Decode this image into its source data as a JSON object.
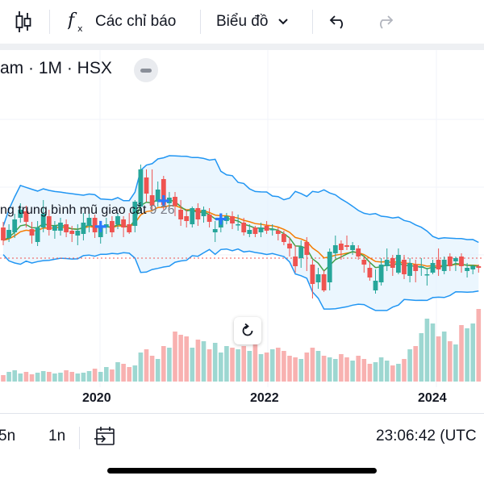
{
  "toolbar": {
    "indicators_label": "Các chỉ báo",
    "chart_type_label": "Biểu đồ"
  },
  "legend": {
    "symbol_text": "am · 1M · HSX"
  },
  "indicator": {
    "name": "ng trung bình mũ giao cắt",
    "values": "9 26"
  },
  "bottom_bar": {
    "range_5y": "5n",
    "range_1y": "1n",
    "clock": "23:06:42 (UTC"
  },
  "colors": {
    "up": "#26a69a",
    "down": "#ef5350",
    "bb_line": "#2196f3",
    "bb_fill": "#e3f2fd",
    "ema_fast": "#43a047",
    "ema_slow": "#f57c00",
    "cross": "#2979ff",
    "price_line": "#ef5350"
  },
  "chart_data": {
    "type": "candlestick",
    "interval": "1M",
    "x_ticks": [
      "2020",
      "2022",
      "2024"
    ],
    "ohlc": [
      [
        218,
        202,
        196,
        225
      ],
      [
        205,
        215,
        200,
        222
      ],
      [
        212,
        228,
        205,
        235
      ],
      [
        230,
        240,
        224,
        248
      ],
      [
        238,
        225,
        218,
        245
      ],
      [
        216,
        208,
        198,
        225
      ],
      [
        200,
        218,
        195,
        226
      ],
      [
        218,
        235,
        212,
        252
      ],
      [
        232,
        215,
        208,
        240
      ],
      [
        214,
        220,
        204,
        226
      ],
      [
        214,
        224,
        208,
        230
      ],
      [
        222,
        212,
        206,
        228
      ],
      [
        214,
        210,
        200,
        220
      ],
      [
        208,
        214,
        196,
        222
      ],
      [
        210,
        224,
        202,
        236
      ],
      [
        220,
        230,
        212,
        236
      ],
      [
        230,
        212,
        205,
        234
      ],
      [
        206,
        220,
        198,
        224
      ],
      [
        218,
        222,
        210,
        230
      ],
      [
        226,
        212,
        206,
        232
      ],
      [
        222,
        232,
        216,
        235
      ],
      [
        228,
        218,
        206,
        232
      ],
      [
        222,
        212,
        210,
        236
      ],
      [
        220,
        250,
        212,
        252
      ],
      [
        244,
        290,
        236,
        296
      ],
      [
        280,
        260,
        250,
        290
      ],
      [
        258,
        245,
        240,
        290
      ],
      [
        250,
        265,
        244,
        275
      ],
      [
        278,
        246,
        240,
        282
      ],
      [
        248,
        255,
        242,
        262
      ],
      [
        256,
        245,
        232,
        262
      ],
      [
        240,
        228,
        220,
        252
      ],
      [
        232,
        226,
        218,
        240
      ],
      [
        222,
        242,
        218,
        244
      ],
      [
        242,
        228,
        220,
        248
      ],
      [
        232,
        240,
        224,
        244
      ],
      [
        234,
        225,
        218,
        242
      ],
      [
        212,
        216,
        200,
        226
      ],
      [
        218,
        228,
        212,
        232
      ],
      [
        226,
        232,
        222,
        236
      ],
      [
        232,
        223,
        216,
        238
      ],
      [
        222,
        222,
        214,
        234
      ],
      [
        224,
        212,
        208,
        230
      ],
      [
        210,
        215,
        206,
        222
      ],
      [
        218,
        210,
        206,
        220
      ],
      [
        212,
        218,
        206,
        224
      ],
      [
        220,
        214,
        210,
        226
      ],
      [
        216,
        216,
        208,
        222
      ],
      [
        214,
        210,
        202,
        218
      ],
      [
        210,
        200,
        196,
        214
      ],
      [
        198,
        192,
        182,
        206
      ],
      [
        182,
        170,
        162,
        196
      ],
      [
        180,
        194,
        168,
        202
      ],
      [
        200,
        184,
        164,
        206
      ],
      [
        172,
        148,
        130,
        178
      ],
      [
        150,
        160,
        142,
        168
      ],
      [
        160,
        140,
        138,
        165
      ],
      [
        150,
        188,
        140,
        192
      ],
      [
        186,
        196,
        180,
        208
      ],
      [
        198,
        190,
        178,
        202
      ],
      [
        196,
        194,
        190,
        208
      ],
      [
        190,
        196,
        184,
        200
      ],
      [
        192,
        182,
        178,
        196
      ],
      [
        178,
        172,
        162,
        182
      ],
      [
        168,
        156,
        152,
        176
      ],
      [
        140,
        152,
        136,
        166
      ],
      [
        150,
        172,
        146,
        180
      ],
      [
        170,
        178,
        164,
        192
      ],
      [
        180,
        168,
        158,
        184
      ],
      [
        162,
        184,
        160,
        192
      ],
      [
        178,
        160,
        154,
        184
      ],
      [
        158,
        174,
        150,
        180
      ],
      [
        172,
        164,
        150,
        178
      ],
      [
        168,
        170,
        158,
        180
      ],
      [
        160,
        160,
        146,
        168
      ],
      [
        162,
        174,
        160,
        178
      ],
      [
        178,
        166,
        158,
        192
      ],
      [
        164,
        178,
        160,
        182
      ],
      [
        182,
        170,
        164,
        186
      ],
      [
        176,
        180,
        164,
        182
      ],
      [
        182,
        170,
        162,
        186
      ],
      [
        164,
        168,
        156,
        174
      ],
      [
        166,
        170,
        160,
        172
      ],
      [
        170,
        168,
        162,
        172
      ]
    ],
    "volume": [
      8,
      12,
      14,
      10,
      12,
      9,
      11,
      13,
      12,
      10,
      11,
      14,
      12,
      10,
      11,
      13,
      16,
      12,
      18,
      15,
      24,
      22,
      18,
      20,
      36,
      40,
      32,
      28,
      44,
      42,
      62,
      58,
      56,
      42,
      52,
      50,
      40,
      48,
      36,
      44,
      42,
      40,
      44,
      38,
      46,
      34,
      36,
      40,
      42,
      38,
      32,
      30,
      28,
      36,
      42,
      38,
      32,
      30,
      28,
      34,
      30,
      26,
      32,
      28,
      22,
      24,
      30,
      26,
      20,
      22,
      28,
      40,
      44,
      60,
      78,
      72,
      56,
      62,
      50,
      46,
      70,
      66,
      72,
      90
    ]
  }
}
